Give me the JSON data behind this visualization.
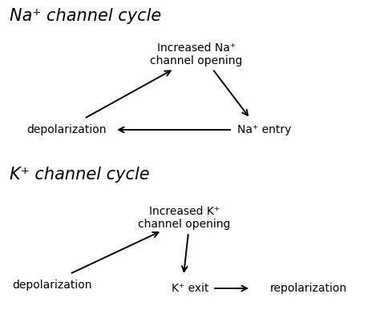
{
  "bg_color": "#ffffff",
  "title_na": "Na⁺ channel cycle",
  "title_k": "K⁺ channel cycle",
  "na_top_label": "Increased Na⁺\nchannel opening",
  "na_left_label": "depolarization",
  "na_right_label": "Na⁺ entry",
  "k_top_label": "Increased K⁺\nchannel opening",
  "k_left_label": "depolarization",
  "k_mid_label": "K⁺ exit",
  "k_right_label": "repolarization",
  "title_fontsize": 15,
  "label_fontsize": 10,
  "arrow_color": "#000000",
  "text_color": "#000000"
}
